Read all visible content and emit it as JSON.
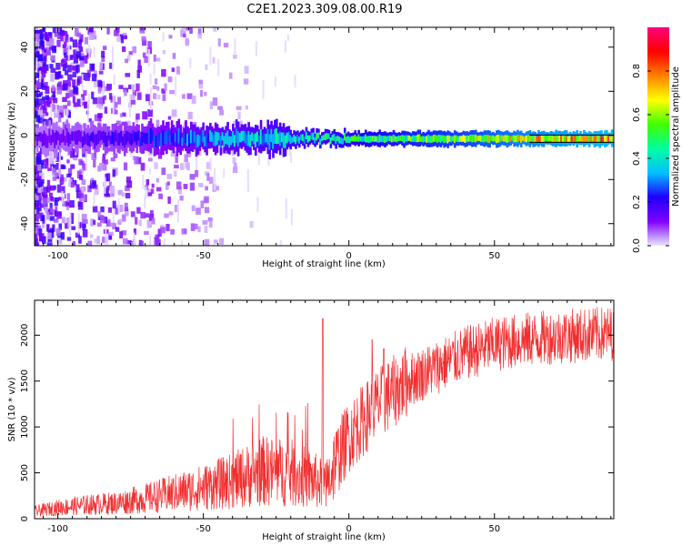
{
  "title": "C2E1.2023.309.08.00.R19",
  "colors": {
    "snr_line": "#f03030",
    "frame": "#000000",
    "noise_band": "#6600ee",
    "ridge": "#2060ff",
    "ridge_core": "#20e0d0",
    "ridge_hot": "#ff2020"
  },
  "chart_data": [
    {
      "type": "heatmap",
      "xlabel": "Height of straight line (km)",
      "ylabel": "Frequency (Hz)",
      "xlim": [
        -108,
        91
      ],
      "ylim": [
        -50,
        49
      ],
      "xticks": [
        -100,
        -50,
        0,
        50
      ],
      "yticks": [
        -40,
        -20,
        0,
        20,
        40
      ],
      "colorbar": {
        "label": "Normalized spectral amplitude",
        "range": [
          0,
          1
        ],
        "ticks": [
          "0.0",
          "0.2",
          "0.4",
          "0.6",
          "0.8"
        ],
        "stops": [
          "#e8e8ff",
          "#8000ff",
          "#2000ff",
          "#00c0ff",
          "#00ffa0",
          "#40ff00",
          "#ffff00",
          "#ff8000",
          "#ff0000",
          "#ff0080"
        ]
      },
      "ridge_frequency_hz": -1.5,
      "ridge_profile": [
        {
          "x": -108,
          "amplitude": 0.15
        },
        {
          "x": -75,
          "amplitude": 0.25
        },
        {
          "x": -50,
          "amplitude": 0.4
        },
        {
          "x": -10,
          "amplitude": 0.55
        },
        {
          "x": 10,
          "amplitude": 0.65
        },
        {
          "x": 40,
          "amplitude": 0.75
        },
        {
          "x": 70,
          "amplitude": 0.9
        },
        {
          "x": 91,
          "amplitude": 0.95
        }
      ]
    },
    {
      "type": "line",
      "xlabel": "Height of straight line (km)",
      "ylabel": "SNR (10 * v/v)",
      "xlim": [
        -108,
        91
      ],
      "ylim": [
        0,
        2380
      ],
      "xticks": [
        -100,
        -50,
        0,
        50
      ],
      "yticks": [
        0,
        500,
        1000,
        1500,
        2000
      ],
      "series": [
        {
          "x": [
            -108,
            -100,
            -90,
            -80,
            -70,
            -60,
            -50,
            -40,
            -30,
            -20,
            -12,
            -8,
            -5,
            0,
            10,
            20,
            30,
            40,
            50,
            60,
            70,
            80,
            91
          ],
          "y": [
            80,
            120,
            150,
            170,
            220,
            280,
            340,
            410,
            520,
            500,
            420,
            350,
            600,
            900,
            1250,
            1500,
            1650,
            1800,
            1900,
            1950,
            1980,
            2000,
            2020
          ]
        }
      ],
      "spikes": [
        {
          "x": -9,
          "y": 2180
        },
        {
          "x": 8,
          "y": 1950
        },
        {
          "x": 12,
          "y": 1850
        }
      ]
    }
  ]
}
